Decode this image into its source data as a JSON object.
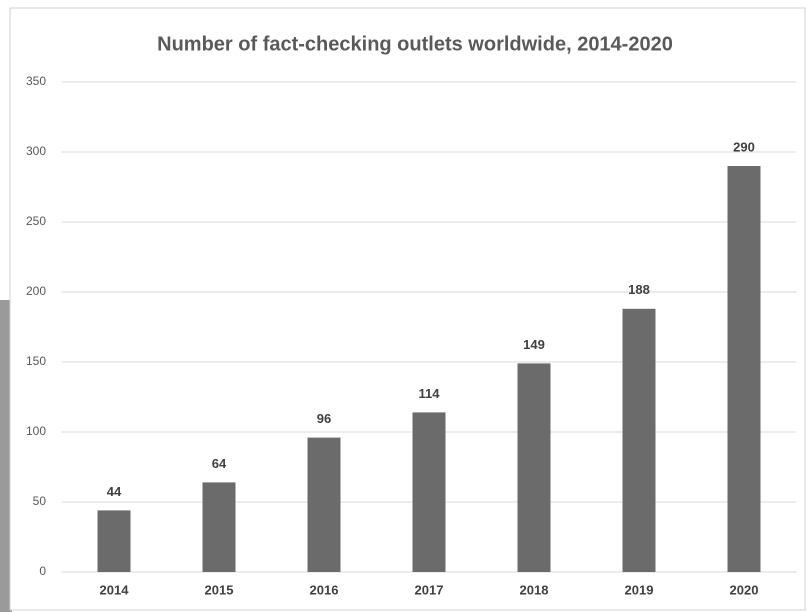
{
  "chart_data": {
    "type": "bar",
    "title": "Number of fact-checking outlets worldwide, 2014-2020",
    "categories": [
      "2014",
      "2015",
      "2016",
      "2017",
      "2018",
      "2019",
      "2020"
    ],
    "values": [
      44,
      64,
      96,
      114,
      149,
      188,
      290
    ],
    "color": "#6b6b6b",
    "ylim": [
      0,
      350
    ],
    "yticks": [
      0,
      50,
      100,
      150,
      200,
      250,
      300,
      350
    ],
    "grid": true
  }
}
